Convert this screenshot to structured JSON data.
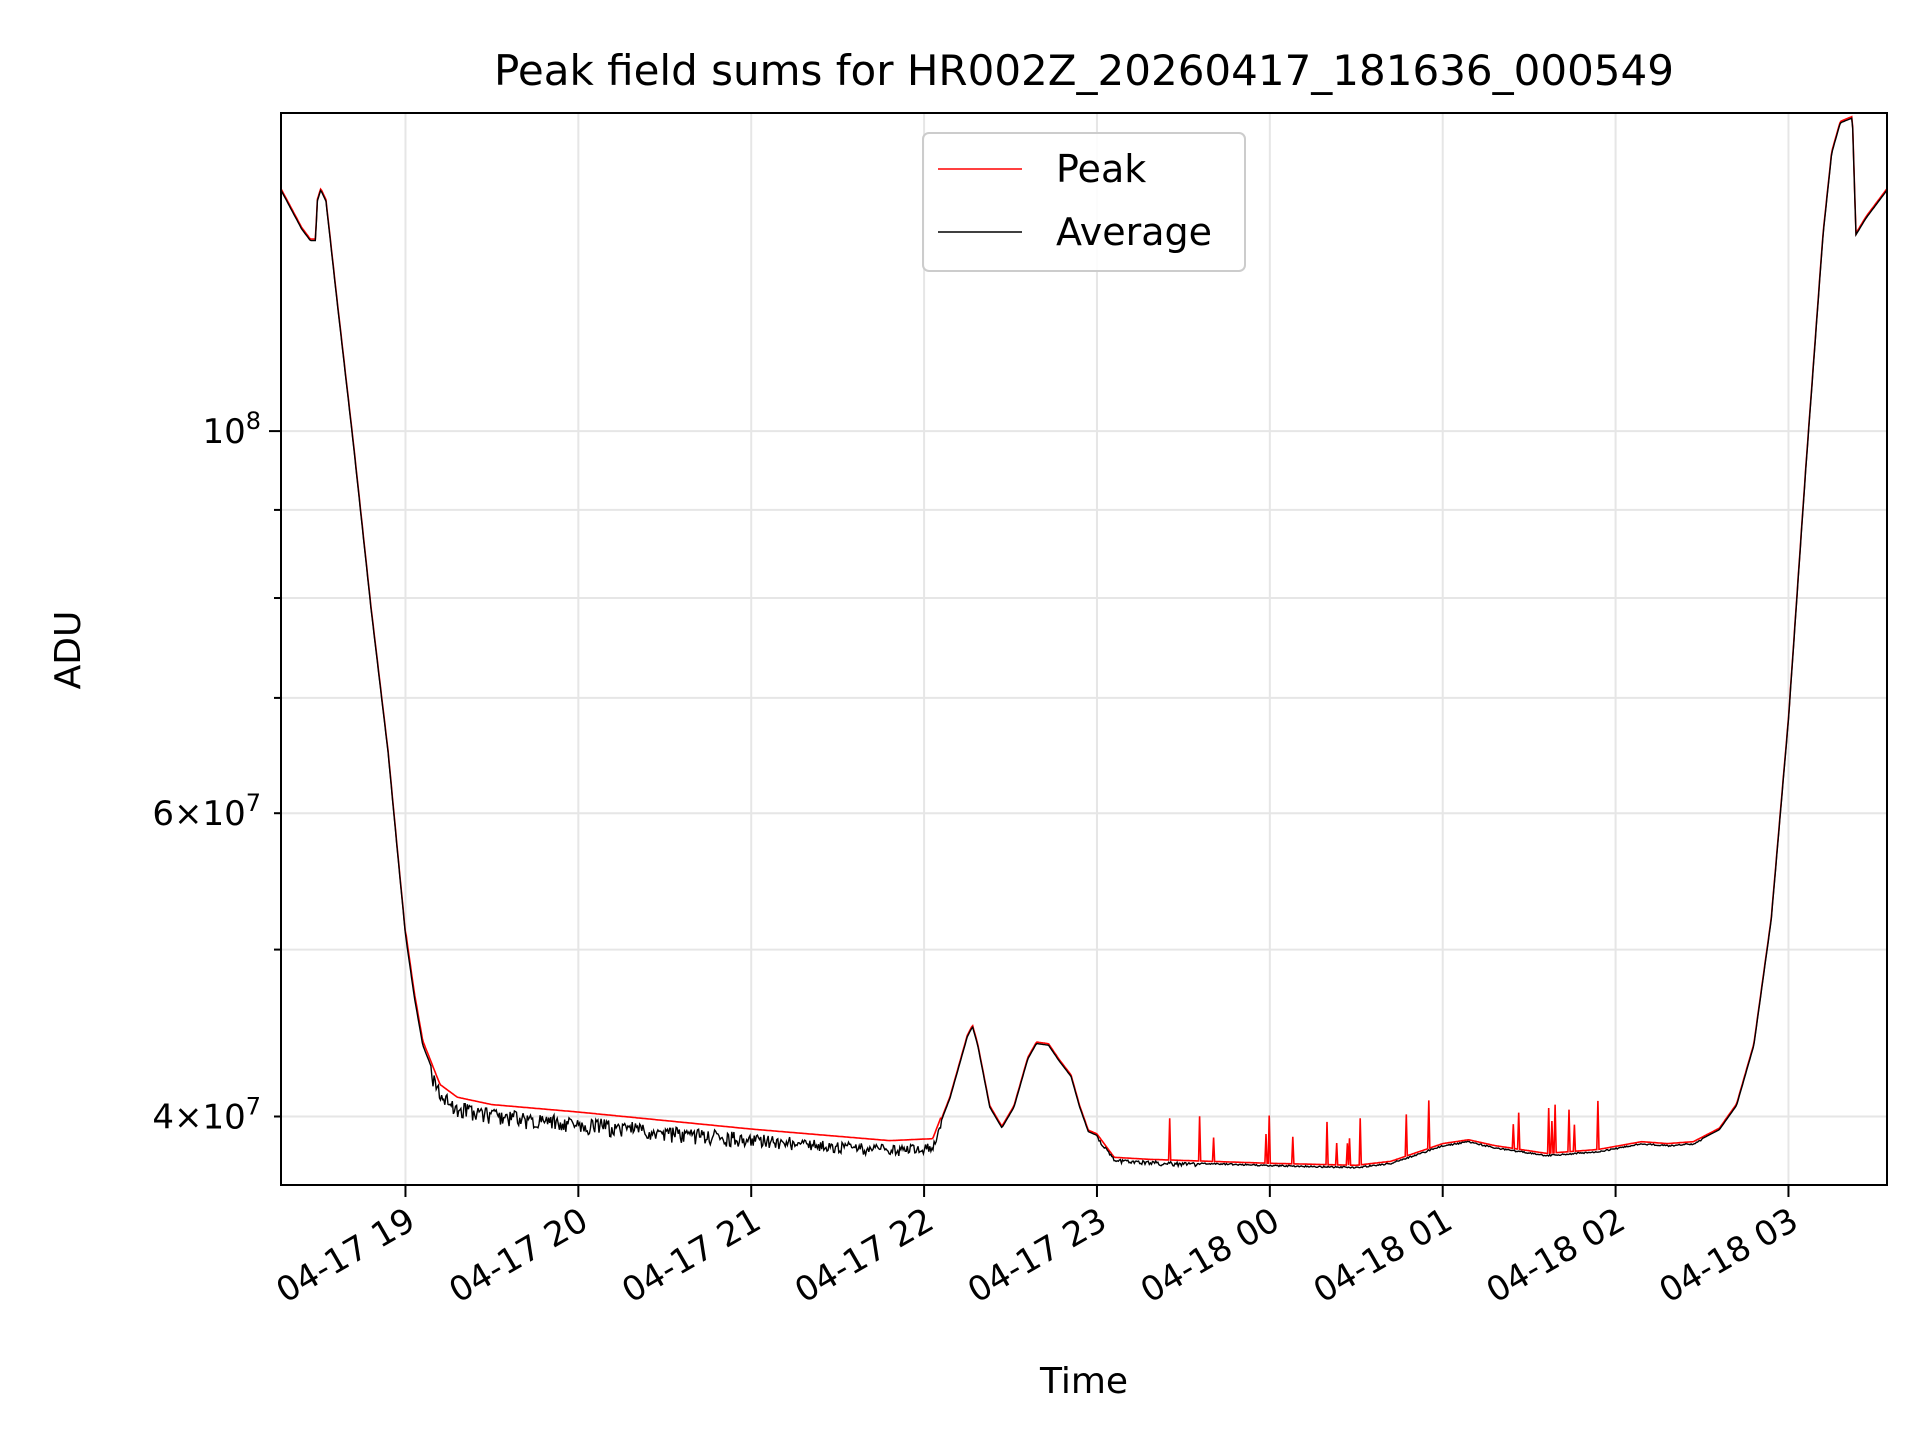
{
  "chart_data": {
    "type": "line",
    "title": "Peak field sums for HR002Z_20260417_181636_000549",
    "xlabel": "Time",
    "ylabel": "ADU",
    "yscale": "log",
    "ylim": [
      36500000,
      153000000
    ],
    "x_range_hours": [
      -0.72,
      8.57
    ],
    "x_ticks": [
      {
        "h": 0,
        "label": "04-17 19"
      },
      {
        "h": 1,
        "label": "04-17 20"
      },
      {
        "h": 2,
        "label": "04-17 21"
      },
      {
        "h": 3,
        "label": "04-17 22"
      },
      {
        "h": 4,
        "label": "04-17 23"
      },
      {
        "h": 5,
        "label": "04-18 00"
      },
      {
        "h": 6,
        "label": "04-18 01"
      },
      {
        "h": 7,
        "label": "04-18 02"
      },
      {
        "h": 8,
        "label": "04-18 03"
      }
    ],
    "y_ticks_major": [
      {
        "value": 100000000,
        "base": "10",
        "exp": "8"
      }
    ],
    "y_ticks_minor": [
      {
        "value": 40000000,
        "mant": "4",
        "base": "10",
        "exp": "7"
      },
      {
        "value": 60000000,
        "mant": "6",
        "base": "10",
        "exp": "7"
      }
    ],
    "y_minor_unlabeled": [
      50000000,
      70000000,
      80000000,
      90000000
    ],
    "grid": true,
    "legend": {
      "position": "top-center",
      "entries": [
        {
          "name": "Peak",
          "color": "#ff0000"
        },
        {
          "name": "Average",
          "color": "#000000"
        }
      ]
    },
    "series": [
      {
        "name": "Peak",
        "color": "#ff0000"
      },
      {
        "name": "Average",
        "color": "#000000",
        "points": [
          [
            -0.72,
            138000000
          ],
          [
            -0.6,
            131000000
          ],
          [
            -0.55,
            129000000
          ],
          [
            -0.52,
            129000000
          ],
          [
            -0.51,
            136000000
          ],
          [
            -0.49,
            138000000
          ],
          [
            -0.46,
            136000000
          ],
          [
            -0.4,
            120000000
          ],
          [
            -0.3,
            98000000
          ],
          [
            -0.2,
            79000000
          ],
          [
            -0.1,
            65000000
          ],
          [
            -0.05,
            57500000
          ],
          [
            0.0,
            51000000
          ],
          [
            0.05,
            47000000
          ],
          [
            0.1,
            44000000
          ],
          [
            0.2,
            41500000
          ],
          [
            0.3,
            40800000
          ],
          [
            0.5,
            40400000
          ],
          [
            1.0,
            40000000
          ],
          [
            2.0,
            39100000
          ],
          [
            2.8,
            38500000
          ],
          [
            3.05,
            38600000
          ],
          [
            3.15,
            41000000
          ],
          [
            3.25,
            44500000
          ],
          [
            3.28,
            45100000
          ],
          [
            3.31,
            44000000
          ],
          [
            3.38,
            40500000
          ],
          [
            3.45,
            39400000
          ],
          [
            3.52,
            40500000
          ],
          [
            3.6,
            43200000
          ],
          [
            3.65,
            44100000
          ],
          [
            3.72,
            44000000
          ],
          [
            3.78,
            43100000
          ],
          [
            3.85,
            42200000
          ],
          [
            3.9,
            40500000
          ],
          [
            3.95,
            39200000
          ],
          [
            4.0,
            39000000
          ],
          [
            4.1,
            37800000
          ],
          [
            4.3,
            37700000
          ],
          [
            5.0,
            37500000
          ],
          [
            5.5,
            37400000
          ],
          [
            5.7,
            37600000
          ],
          [
            6.0,
            38500000
          ],
          [
            6.15,
            38700000
          ],
          [
            6.3,
            38400000
          ],
          [
            6.6,
            38000000
          ],
          [
            6.9,
            38200000
          ],
          [
            7.15,
            38600000
          ],
          [
            7.3,
            38500000
          ],
          [
            7.45,
            38600000
          ],
          [
            7.6,
            39300000
          ],
          [
            7.7,
            40600000
          ],
          [
            7.8,
            44000000
          ],
          [
            7.9,
            52000000
          ],
          [
            8.0,
            68000000
          ],
          [
            8.1,
            95000000
          ],
          [
            8.2,
            130000000
          ],
          [
            8.25,
            145000000
          ],
          [
            8.3,
            151000000
          ],
          [
            8.37,
            152000000
          ],
          [
            8.39,
            130000000
          ],
          [
            8.45,
            133000000
          ],
          [
            8.57,
            138000000
          ]
        ]
      }
    ]
  }
}
